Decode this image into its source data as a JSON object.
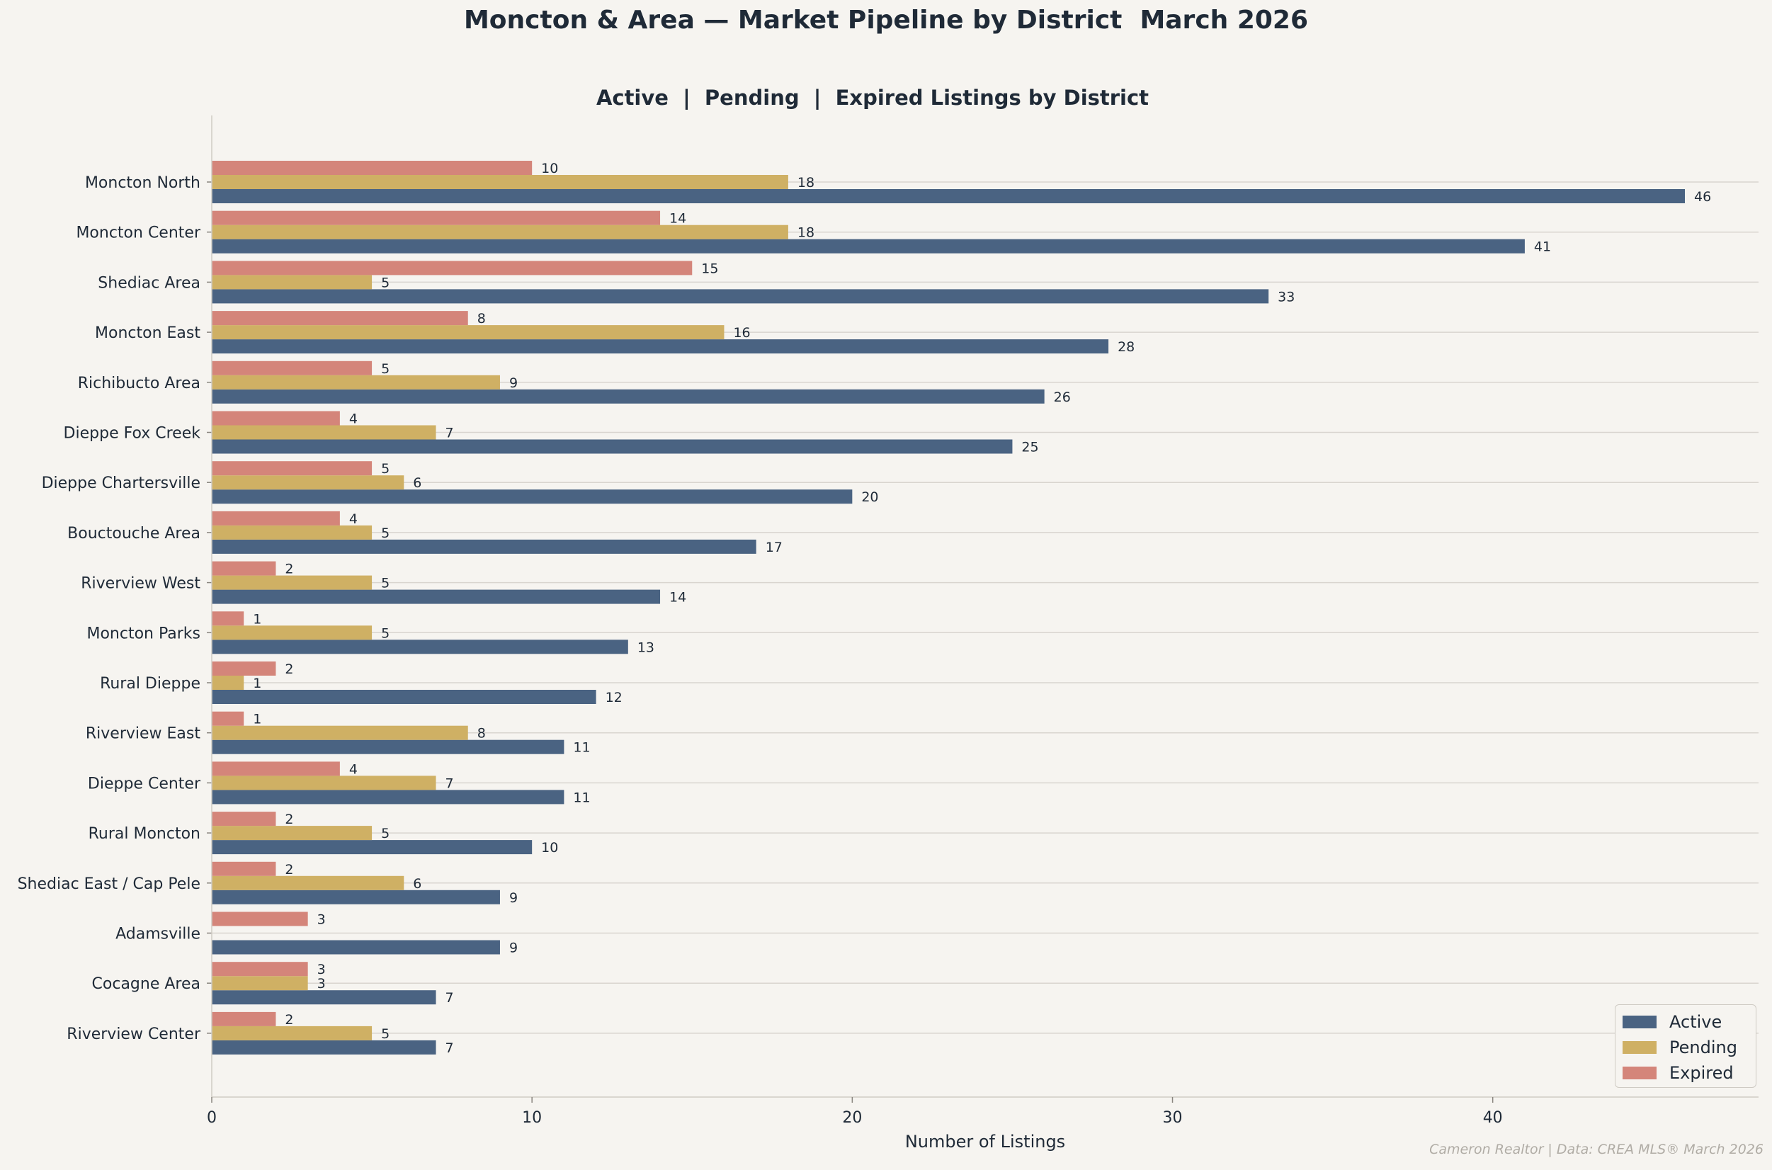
{
  "suptitle": "Moncton & Area — Market Pipeline by District  March 2026",
  "credit": "Cameron Realtor  |  Data: CREA MLS® March 2026",
  "chart_data": {
    "type": "bar",
    "orientation": "horizontal",
    "title": "Active  |  Pending  |  Expired Listings by District",
    "xlabel": "Number of Listings",
    "ylabel": "",
    "xlim": [
      0,
      48.3
    ],
    "xticks": [
      0,
      10,
      20,
      30,
      40
    ],
    "grid": "horizontal",
    "legend": "bottom-right",
    "categories": [
      "Moncton North",
      "Moncton Center",
      "Shediac Area",
      "Moncton East",
      "Richibucto Area",
      "Dieppe Fox Creek",
      "Dieppe Chartersville",
      "Bouctouche Area",
      "Riverview West",
      "Moncton Parks",
      "Rural Dieppe",
      "Riverview East",
      "Dieppe Center",
      "Rural Moncton",
      "Shediac East / Cap Pele",
      "Adamsville",
      "Cocagne Area",
      "Riverview Center"
    ],
    "series": [
      {
        "name": "Active",
        "color": "#4a6382",
        "values": [
          46,
          41,
          33,
          28,
          26,
          25,
          20,
          17,
          14,
          13,
          12,
          11,
          11,
          10,
          9,
          9,
          7,
          7
        ]
      },
      {
        "name": "Pending",
        "color": "#cfb064",
        "values": [
          18,
          18,
          5,
          16,
          9,
          7,
          6,
          5,
          5,
          5,
          1,
          8,
          7,
          5,
          6,
          0,
          3,
          5
        ]
      },
      {
        "name": "Expired",
        "color": "#d4857a",
        "values": [
          10,
          14,
          15,
          8,
          5,
          4,
          5,
          4,
          2,
          1,
          2,
          1,
          4,
          2,
          2,
          3,
          3,
          2
        ]
      }
    ]
  }
}
